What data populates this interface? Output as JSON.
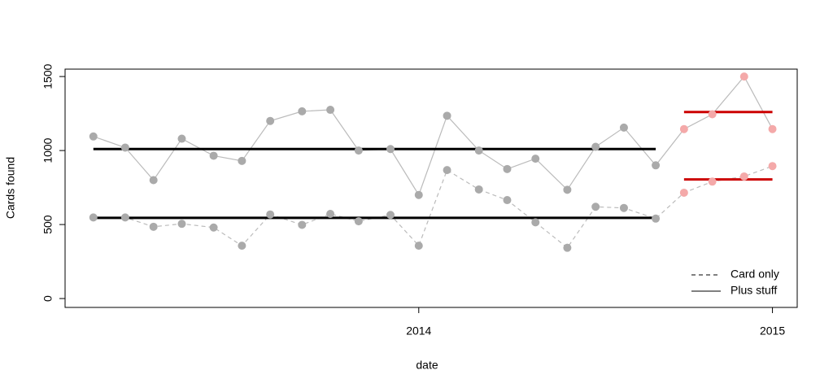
{
  "chart_data": {
    "type": "line",
    "xlabel": "date",
    "ylabel": "Cards found",
    "x": [
      2013.08,
      2013.17,
      2013.25,
      2013.33,
      2013.42,
      2013.5,
      2013.58,
      2013.67,
      2013.75,
      2013.83,
      2013.92,
      2014,
      2014.08,
      2014.17,
      2014.25,
      2014.33,
      2014.42,
      2014.5,
      2014.58,
      2014.67,
      2014.75,
      2014.83,
      2014.92,
      2015
    ],
    "series": [
      {
        "name": "Card only",
        "dash": true,
        "color": "#bbbbbb",
        "values": [
          548,
          548,
          485,
          505,
          480,
          357,
          568,
          498,
          572,
          522,
          565,
          357,
          868,
          737,
          665,
          515,
          343,
          620,
          612,
          540,
          715,
          790,
          825,
          895
        ]
      },
      {
        "name": "Plus stuff",
        "dash": false,
        "color": "#bbbbbb",
        "values": [
          1095,
          1020,
          800,
          1080,
          965,
          930,
          1200,
          1265,
          1275,
          1000,
          1010,
          700,
          1235,
          1000,
          875,
          945,
          735,
          1025,
          1155,
          900,
          1145,
          1245,
          1500,
          1145
        ]
      }
    ],
    "point_colors": [
      "#aaaaaa",
      "#aaaaaa",
      "#aaaaaa",
      "#aaaaaa",
      "#aaaaaa",
      "#aaaaaa",
      "#aaaaaa",
      "#aaaaaa",
      "#aaaaaa",
      "#aaaaaa",
      "#aaaaaa",
      "#aaaaaa",
      "#aaaaaa",
      "#aaaaaa",
      "#aaaaaa",
      "#aaaaaa",
      "#aaaaaa",
      "#aaaaaa",
      "#aaaaaa",
      "#aaaaaa",
      "#f4a9a9",
      "#f4a9a9",
      "#f4a9a9",
      "#f4a9a9"
    ],
    "mean_lines": [
      {
        "value": 1010,
        "x0": 2013.08,
        "x1": 2014.67,
        "color": "#000000"
      },
      {
        "value": 545,
        "x0": 2013.08,
        "x1": 2014.67,
        "color": "#000000"
      },
      {
        "value": 1260,
        "x0": 2014.75,
        "x1": 2015,
        "color": "#cc0000"
      },
      {
        "value": 805,
        "x0": 2014.75,
        "x1": 2015,
        "color": "#cc0000"
      }
    ],
    "xlim": [
      2013.0,
      2015.07
    ],
    "xticks": [
      2014,
      2015
    ],
    "ylim": [
      -60,
      1550
    ],
    "yticks": [
      0,
      500,
      1000,
      1500
    ],
    "legend": "bottomright"
  }
}
